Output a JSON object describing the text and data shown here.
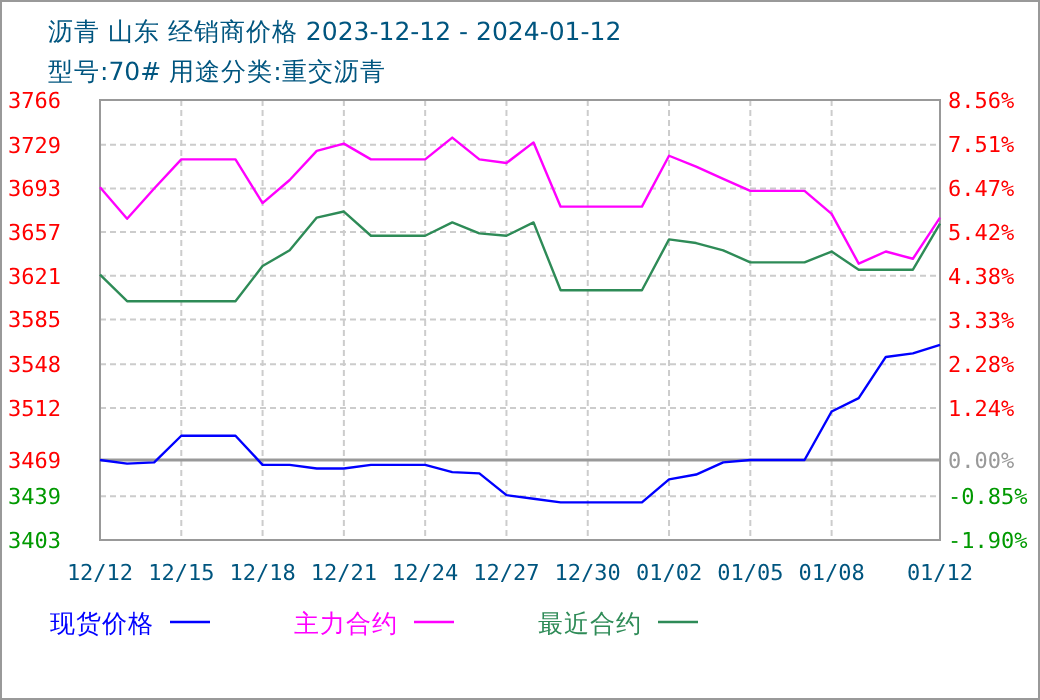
{
  "chart_data": {
    "type": "line",
    "title": "沥青  山东 经销商价格 2023-12-12 - 2024-01-12",
    "subtitle": "型号:70# 用途分类:重交沥青",
    "x": [
      "2023-12-12",
      "2023-12-13",
      "2023-12-14",
      "2023-12-15",
      "2023-12-16",
      "2023-12-17",
      "2023-12-18",
      "2023-12-19",
      "2023-12-20",
      "2023-12-21",
      "2023-12-22",
      "2023-12-23",
      "2023-12-24",
      "2023-12-25",
      "2023-12-26",
      "2023-12-27",
      "2023-12-28",
      "2023-12-29",
      "2023-12-30",
      "2023-12-31",
      "2024-01-01",
      "2024-01-02",
      "2024-01-03",
      "2024-01-04",
      "2024-01-05",
      "2024-01-06",
      "2024-01-07",
      "2024-01-08",
      "2024-01-09",
      "2024-01-10",
      "2024-01-11",
      "2024-01-12"
    ],
    "series": [
      {
        "name": "现货价格",
        "color": "#0000ff",
        "values": [
          3469,
          3466,
          3467,
          3489,
          3489,
          3489,
          3465,
          3465,
          3462,
          3462,
          3465,
          3465,
          3465,
          3459,
          3458,
          3440,
          3437,
          3434,
          3434,
          3434,
          3434,
          3453,
          3457,
          3467,
          3469,
          3469,
          3469,
          3509,
          3520,
          3554,
          3557,
          3564
        ]
      },
      {
        "name": "主力合约",
        "color": "#ff00ff",
        "values": [
          3694,
          3668,
          3693,
          3717,
          3717,
          3717,
          3681,
          3700,
          3724,
          3730,
          3717,
          3717,
          3717,
          3735,
          3717,
          3714,
          3731,
          3678,
          3678,
          3678,
          3678,
          3720,
          3711,
          3701,
          3691,
          3691,
          3691,
          3672,
          3631,
          3641,
          3635,
          3669
        ]
      },
      {
        "name": "最近合约",
        "color": "#2e8b57",
        "values": [
          3622,
          3600,
          3600,
          3600,
          3600,
          3600,
          3629,
          3642,
          3669,
          3674,
          3654,
          3654,
          3654,
          3665,
          3656,
          3654,
          3665,
          3609,
          3609,
          3609,
          3609,
          3651,
          3648,
          3642,
          3632,
          3632,
          3632,
          3641,
          3626,
          3626,
          3626,
          3664
        ]
      }
    ],
    "xlim": [
      "2023-12-12",
      "2024-01-12"
    ],
    "xticks": [
      {
        "value": "2023-12-12",
        "label": "12/12"
      },
      {
        "value": "2023-12-15",
        "label": "12/15"
      },
      {
        "value": "2023-12-18",
        "label": "12/18"
      },
      {
        "value": "2023-12-21",
        "label": "12/21"
      },
      {
        "value": "2023-12-24",
        "label": "12/24"
      },
      {
        "value": "2023-12-27",
        "label": "12/27"
      },
      {
        "value": "2023-12-30",
        "label": "12/30"
      },
      {
        "value": "2024-01-02",
        "label": "01/02"
      },
      {
        "value": "2024-01-05",
        "label": "01/05"
      },
      {
        "value": "2024-01-08",
        "label": "01/08"
      },
      {
        "value": "2024-01-12",
        "label": "01/12"
      }
    ],
    "ylim": [
      3403,
      3766
    ],
    "yticks": [
      3766,
      3729,
      3693,
      3657,
      3621,
      3585,
      3548,
      3512,
      3469,
      3439,
      3403
    ],
    "y2lim": [
      -1.9,
      8.56
    ],
    "y2ticks": [
      {
        "value": 8.56,
        "label": "8.56%"
      },
      {
        "value": 7.51,
        "label": "7.51%"
      },
      {
        "value": 6.47,
        "label": "6.47%"
      },
      {
        "value": 5.42,
        "label": "5.42%"
      },
      {
        "value": 4.38,
        "label": "4.38%"
      },
      {
        "value": 3.33,
        "label": "3.33%"
      },
      {
        "value": 2.28,
        "label": "2.28%"
      },
      {
        "value": 1.24,
        "label": "1.24%"
      },
      {
        "value": 0,
        "label": "0.00%"
      },
      {
        "value": -0.85,
        "label": "-0.85%"
      },
      {
        "value": -1.9,
        "label": "-1.90%"
      }
    ],
    "ref_lines": [
      {
        "axis": "y2",
        "value": 0,
        "color": "#999999",
        "line_style": "solid"
      }
    ],
    "grid": true,
    "legend": "bottom",
    "line_style": "solid"
  }
}
